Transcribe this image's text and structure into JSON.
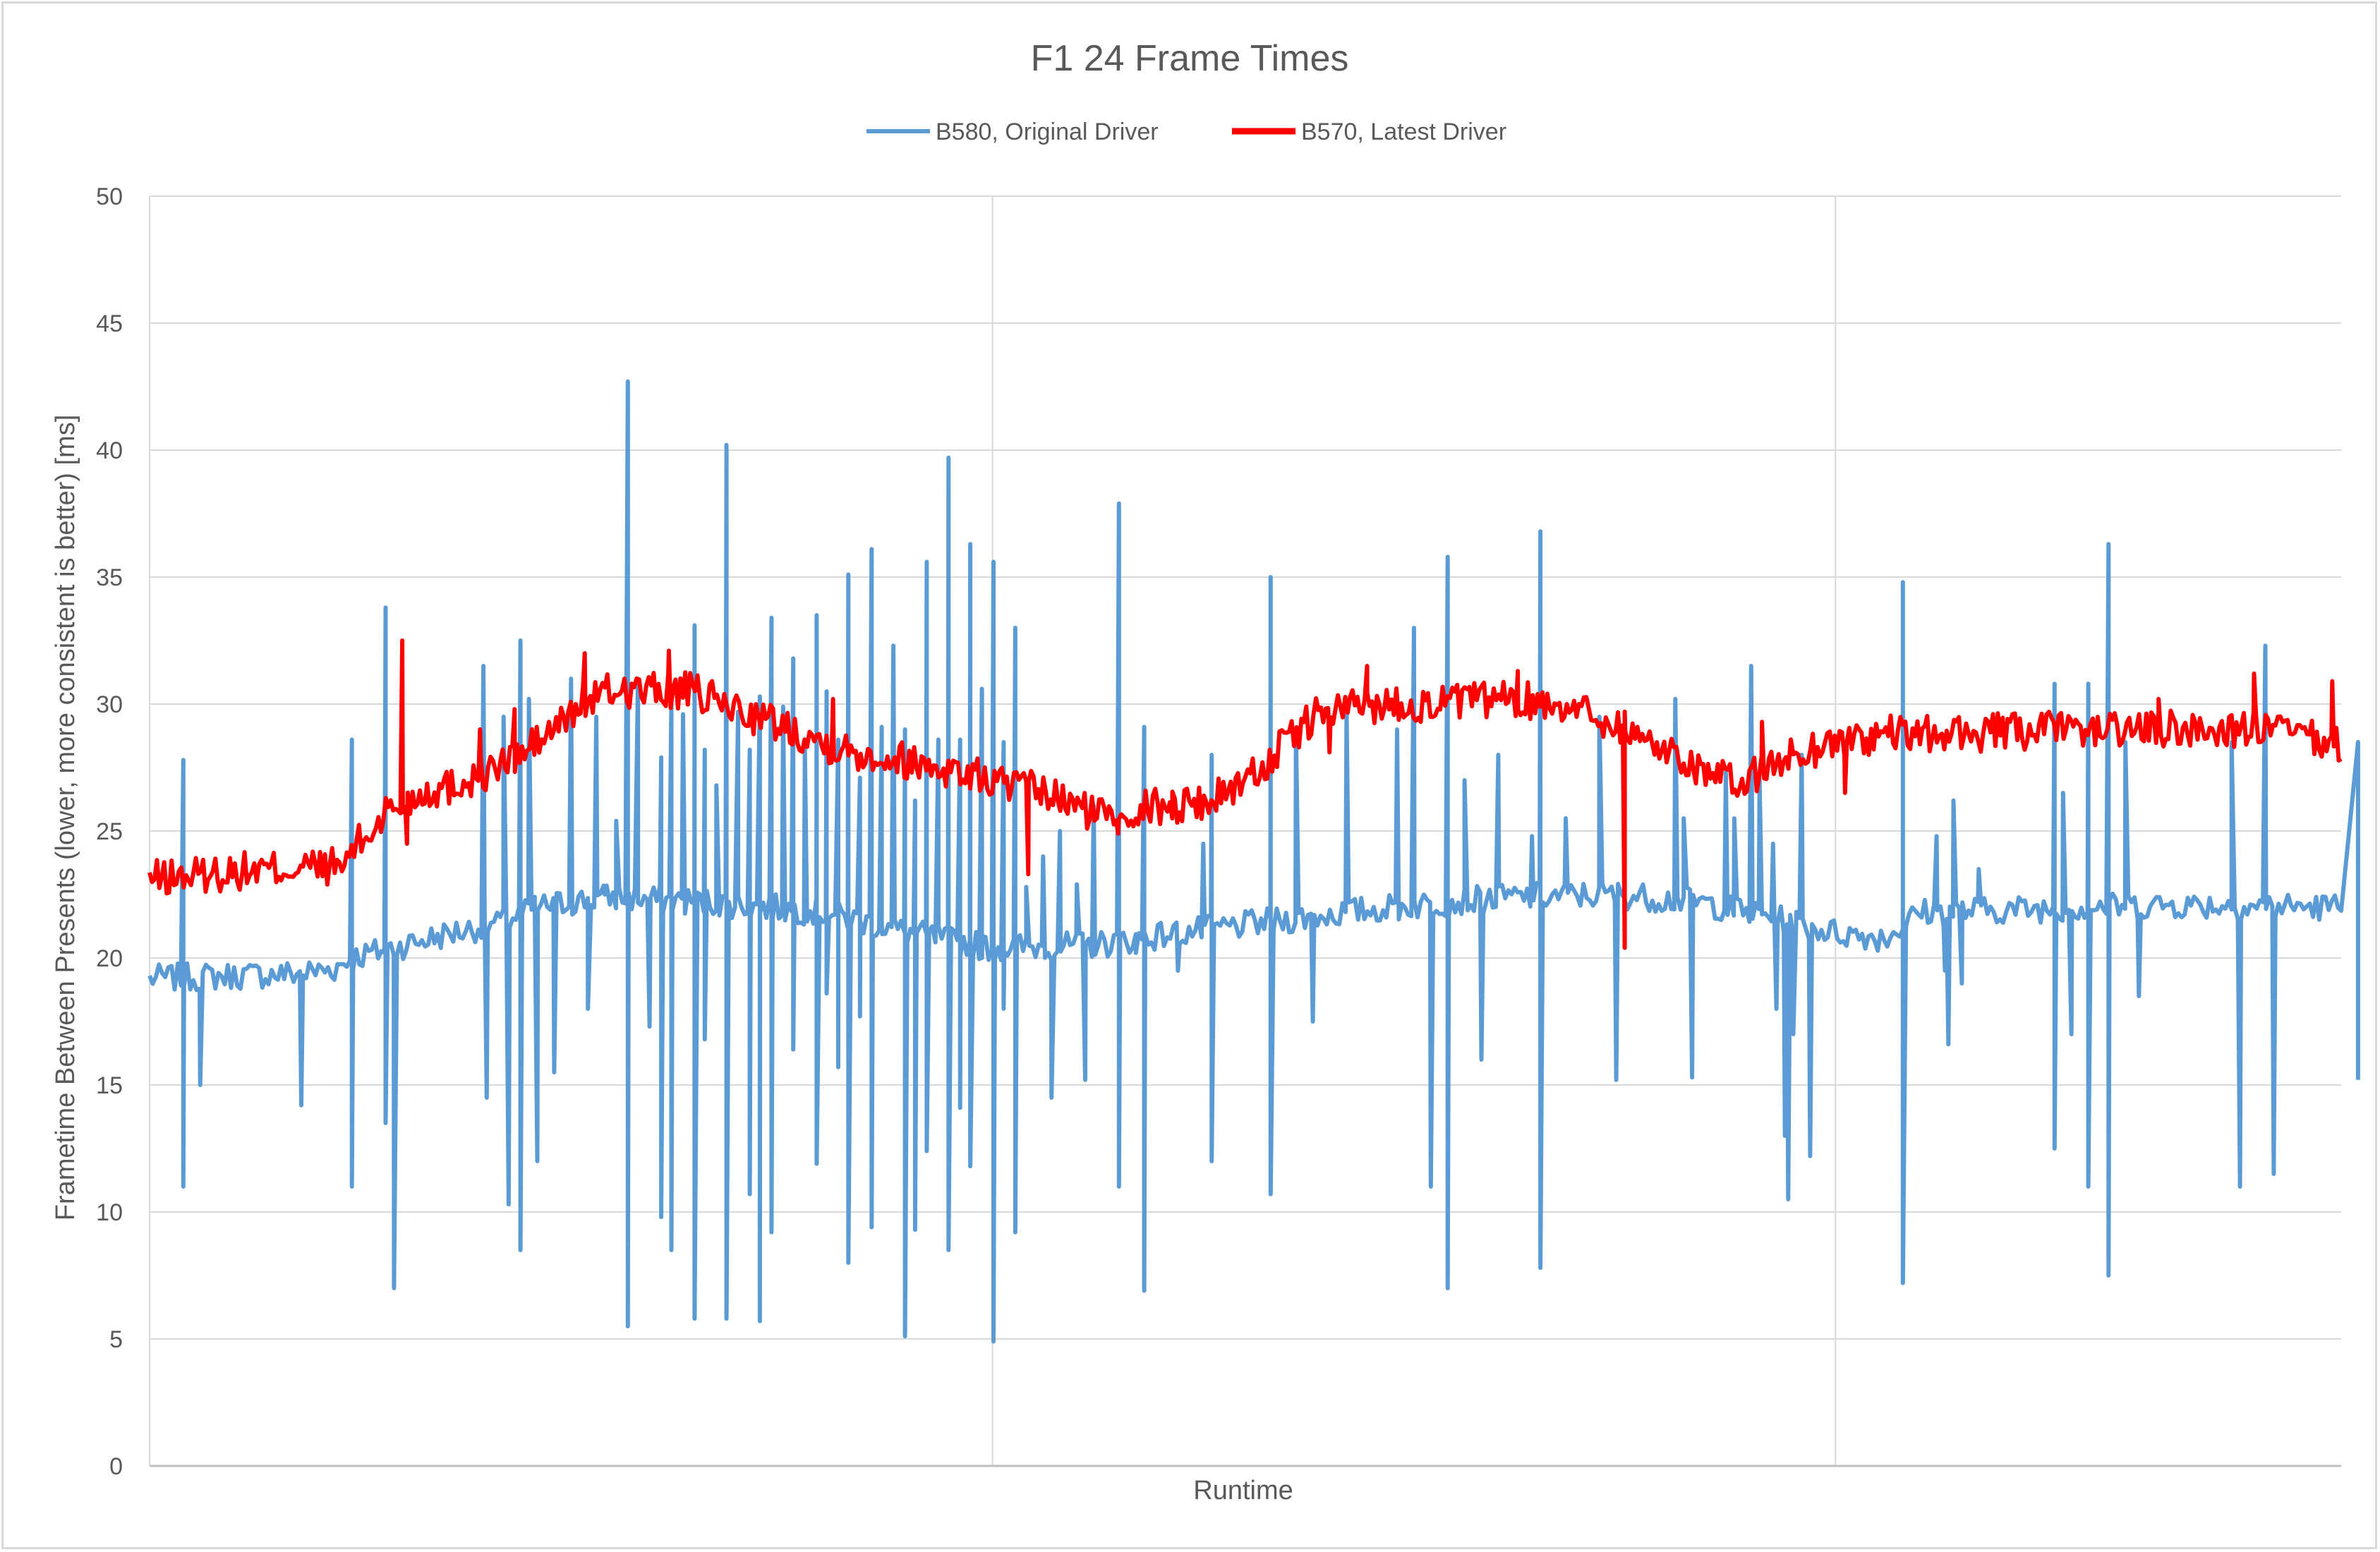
{
  "chart_data": {
    "type": "line",
    "title": "F1 24 Frame Times",
    "xlabel": "Runtime",
    "ylabel": "Frametime Between Presents (lower, more consistent is better) [ms]",
    "ylim": [
      0,
      50
    ],
    "yticks": [
      0,
      5,
      10,
      15,
      20,
      25,
      30,
      35,
      40,
      45,
      50
    ],
    "xlim": [
      0,
      1.3
    ],
    "x_gridlines": [
      0.5,
      1.0
    ],
    "grid": true,
    "legend_position": "top",
    "colors": {
      "B580": "#5b9bd5",
      "B570": "#ff0000",
      "grid": "#d9d9d9",
      "text": "#595959"
    },
    "series": [
      {
        "name": "B580, Original Driver",
        "color": "#5b9bd5",
        "profile": [
          [
            0.0,
            19.2
          ],
          [
            0.05,
            19.3
          ],
          [
            0.09,
            19.4
          ],
          [
            0.11,
            19.6
          ],
          [
            0.12,
            20.0
          ],
          [
            0.15,
            20.5
          ],
          [
            0.18,
            21.0
          ],
          [
            0.21,
            21.4
          ],
          [
            0.23,
            22.0
          ],
          [
            0.27,
            22.4
          ],
          [
            0.33,
            22.2
          ],
          [
            0.4,
            21.8
          ],
          [
            0.45,
            21.0
          ],
          [
            0.5,
            20.4
          ],
          [
            0.56,
            20.5
          ],
          [
            0.6,
            20.9
          ],
          [
            0.65,
            21.3
          ],
          [
            0.71,
            21.8
          ],
          [
            0.77,
            22.2
          ],
          [
            0.81,
            22.4
          ],
          [
            0.87,
            22.5
          ],
          [
            0.92,
            22.2
          ],
          [
            0.96,
            21.6
          ],
          [
            1.0,
            21.0
          ],
          [
            1.03,
            20.8
          ],
          [
            1.05,
            21.8
          ],
          [
            1.1,
            21.9
          ],
          [
            1.2,
            22.1
          ],
          [
            1.3,
            22.0
          ]
        ],
        "spikes": [
          [
            0.02,
            27.8
          ],
          [
            0.02,
            11.0
          ],
          [
            0.03,
            15.0
          ],
          [
            0.09,
            14.2
          ],
          [
            0.12,
            28.6
          ],
          [
            0.12,
            11.0
          ],
          [
            0.14,
            33.8
          ],
          [
            0.14,
            13.5
          ],
          [
            0.145,
            7.0
          ],
          [
            0.198,
            31.5
          ],
          [
            0.2,
            14.5
          ],
          [
            0.21,
            29.5
          ],
          [
            0.213,
            10.3
          ],
          [
            0.22,
            32.5
          ],
          [
            0.22,
            8.5
          ],
          [
            0.225,
            30.2
          ],
          [
            0.23,
            12.0
          ],
          [
            0.24,
            15.5
          ],
          [
            0.25,
            31.0
          ],
          [
            0.26,
            18.0
          ],
          [
            0.265,
            29.5
          ],
          [
            0.27,
            22.5
          ],
          [
            0.2768,
            25.4
          ],
          [
            0.2837,
            42.7
          ],
          [
            0.2837,
            5.5
          ],
          [
            0.2897,
            31.0
          ],
          [
            0.2966,
            17.3
          ],
          [
            0.3035,
            27.9
          ],
          [
            0.3035,
            9.8
          ],
          [
            0.3095,
            30.0
          ],
          [
            0.3095,
            8.5
          ],
          [
            0.3164,
            29.6
          ],
          [
            0.3233,
            33.1
          ],
          [
            0.3233,
            5.8
          ],
          [
            0.3293,
            28.2
          ],
          [
            0.3293,
            16.8
          ],
          [
            0.3362,
            26.8
          ],
          [
            0.3422,
            40.2
          ],
          [
            0.3422,
            5.8
          ],
          [
            0.3491,
            29.7
          ],
          [
            0.3491,
            23.8
          ],
          [
            0.356,
            28.2
          ],
          [
            0.356,
            10.7
          ],
          [
            0.362,
            30.3
          ],
          [
            0.362,
            5.7
          ],
          [
            0.3689,
            33.4
          ],
          [
            0.3689,
            9.2
          ],
          [
            0.3758,
            29.9
          ],
          [
            0.3818,
            31.8
          ],
          [
            0.3818,
            16.4
          ],
          [
            0.3887,
            28.2
          ],
          [
            0.3957,
            33.5
          ],
          [
            0.3957,
            11.9
          ],
          [
            0.4016,
            30.5
          ],
          [
            0.4016,
            18.6
          ],
          [
            0.4085,
            28.6
          ],
          [
            0.4085,
            15.7
          ],
          [
            0.4145,
            35.1
          ],
          [
            0.4145,
            8.0
          ],
          [
            0.4214,
            27.1
          ],
          [
            0.4214,
            17.7
          ],
          [
            0.4283,
            36.1
          ],
          [
            0.4283,
            9.4
          ],
          [
            0.4343,
            29.1
          ],
          [
            0.4343,
            21.4
          ],
          [
            0.4412,
            32.3
          ],
          [
            0.4481,
            29.0
          ],
          [
            0.4481,
            5.1
          ],
          [
            0.4541,
            26.2
          ],
          [
            0.4541,
            9.3
          ],
          [
            0.461,
            35.6
          ],
          [
            0.461,
            12.4
          ],
          [
            0.4679,
            28.6
          ],
          [
            0.4679,
            22.0
          ],
          [
            0.4739,
            39.7
          ],
          [
            0.4739,
            8.5
          ],
          [
            0.4808,
            28.6
          ],
          [
            0.4808,
            14.1
          ],
          [
            0.4868,
            36.3
          ],
          [
            0.4868,
            11.8
          ],
          [
            0.4937,
            30.6
          ],
          [
            0.4937,
            20.0
          ],
          [
            0.5006,
            35.6
          ],
          [
            0.5006,
            4.9
          ],
          [
            0.5066,
            28.5
          ],
          [
            0.5066,
            18.0
          ],
          [
            0.5135,
            33.0
          ],
          [
            0.5135,
            9.2
          ],
          [
            0.52,
            22.8
          ],
          [
            0.53,
            24.0
          ],
          [
            0.535,
            14.5
          ],
          [
            0.54,
            25.0
          ],
          [
            0.55,
            22.9
          ],
          [
            0.555,
            15.2
          ],
          [
            0.56,
            26.0
          ],
          [
            0.575,
            37.9
          ],
          [
            0.575,
            11.0
          ],
          [
            0.585,
            20.2
          ],
          [
            0.59,
            29.1
          ],
          [
            0.59,
            6.9
          ],
          [
            0.61,
            19.5
          ],
          [
            0.625,
            24.5
          ],
          [
            0.63,
            28.0
          ],
          [
            0.63,
            12.0
          ],
          [
            0.665,
            35.0
          ],
          [
            0.665,
            10.7
          ],
          [
            0.68,
            29.0
          ],
          [
            0.69,
            17.5
          ],
          [
            0.71,
            29.8
          ],
          [
            0.74,
            29.0
          ],
          [
            0.75,
            33.0
          ],
          [
            0.76,
            11.0
          ],
          [
            0.77,
            35.8
          ],
          [
            0.77,
            7.0
          ],
          [
            0.78,
            27.0
          ],
          [
            0.79,
            16.0
          ],
          [
            0.8,
            28.0
          ],
          [
            0.82,
            24.8
          ],
          [
            0.825,
            36.8
          ],
          [
            0.825,
            7.8
          ],
          [
            0.84,
            25.5
          ],
          [
            0.86,
            29.5
          ],
          [
            0.87,
            15.2
          ],
          [
            0.905,
            30.2
          ],
          [
            0.91,
            25.5
          ],
          [
            0.915,
            15.3
          ],
          [
            0.935,
            27.3
          ],
          [
            0.94,
            25.5
          ],
          [
            0.95,
            31.5
          ],
          [
            0.955,
            27.0
          ],
          [
            0.963,
            24.5
          ],
          [
            0.965,
            18.0
          ],
          [
            0.97,
            13.0
          ],
          [
            0.972,
            10.5
          ],
          [
            0.975,
            17.0
          ],
          [
            0.98,
            28.0
          ],
          [
            0.985,
            12.2
          ],
          [
            1.04,
            34.8
          ],
          [
            1.04,
            7.2
          ],
          [
            1.06,
            24.8
          ],
          [
            1.065,
            19.5
          ],
          [
            1.067,
            16.6
          ],
          [
            1.07,
            26.2
          ],
          [
            1.075,
            19.0
          ],
          [
            1.085,
            23.5
          ],
          [
            1.13,
            30.8
          ],
          [
            1.13,
            12.5
          ],
          [
            1.135,
            26.5
          ],
          [
            1.14,
            17.0
          ],
          [
            1.15,
            30.8
          ],
          [
            1.15,
            11.0
          ],
          [
            1.162,
            36.3
          ],
          [
            1.162,
            7.5
          ],
          [
            1.172,
            28.5
          ],
          [
            1.18,
            18.5
          ],
          [
            1.235,
            28.5
          ],
          [
            1.24,
            11.0
          ],
          [
            1.255,
            32.3
          ],
          [
            1.26,
            11.5
          ],
          [
            1.31,
            28.5
          ],
          [
            1.31,
            15.2
          ]
        ]
      },
      {
        "name": "B570, Latest Driver",
        "color": "#ff0000",
        "profile": [
          [
            0.0,
            23.1
          ],
          [
            0.05,
            23.4
          ],
          [
            0.1,
            23.6
          ],
          [
            0.115,
            23.6
          ],
          [
            0.12,
            24.3
          ],
          [
            0.13,
            24.8
          ],
          [
            0.14,
            25.8
          ],
          [
            0.15,
            26.0
          ],
          [
            0.16,
            26.5
          ],
          [
            0.18,
            26.8
          ],
          [
            0.2,
            27.3
          ],
          [
            0.22,
            28.0
          ],
          [
            0.24,
            29.0
          ],
          [
            0.26,
            30.2
          ],
          [
            0.28,
            30.6
          ],
          [
            0.3,
            30.5
          ],
          [
            0.32,
            30.5
          ],
          [
            0.34,
            30.0
          ],
          [
            0.36,
            29.5
          ],
          [
            0.39,
            28.8
          ],
          [
            0.41,
            28.2
          ],
          [
            0.44,
            27.9
          ],
          [
            0.47,
            27.5
          ],
          [
            0.5,
            27.0
          ],
          [
            0.53,
            26.5
          ],
          [
            0.56,
            25.7
          ],
          [
            0.58,
            25.8
          ],
          [
            0.6,
            26.0
          ],
          [
            0.63,
            26.2
          ],
          [
            0.66,
            27.5
          ],
          [
            0.69,
            29.5
          ],
          [
            0.72,
            30.0
          ],
          [
            0.76,
            30.0
          ],
          [
            0.8,
            30.2
          ],
          [
            0.84,
            30.0
          ],
          [
            0.86,
            29.5
          ],
          [
            0.88,
            28.8
          ],
          [
            0.9,
            28.2
          ],
          [
            0.92,
            27.5
          ],
          [
            0.94,
            26.8
          ],
          [
            0.96,
            27.5
          ],
          [
            0.975,
            28.0
          ],
          [
            1.0,
            28.5
          ],
          [
            1.03,
            28.8
          ],
          [
            1.06,
            28.8
          ],
          [
            1.1,
            28.9
          ],
          [
            1.14,
            29.0
          ],
          [
            1.18,
            29.0
          ],
          [
            1.22,
            29.0
          ],
          [
            1.26,
            29.0
          ],
          [
            1.3,
            28.3
          ]
        ],
        "spikes": [
          [
            0.1499,
            32.5
          ],
          [
            0.1527,
            24.5
          ],
          [
            0.875,
            20.4
          ],
          [
            0.875,
            29.7
          ],
          [
            0.7222,
            31.5
          ],
          [
            0.5212,
            23.3
          ],
          [
            0.308,
            32.1
          ],
          [
            0.196,
            29.0
          ],
          [
            1.0057,
            26.5
          ],
          [
            0.6066,
            25.5
          ],
          [
            0.9564,
            29.3
          ],
          [
            0.5745,
            24.9
          ],
          [
            0.6999,
            28.1
          ],
          [
            0.2581,
            32.0
          ],
          [
            0.2165,
            29.8
          ],
          [
            0.4054,
            30.2
          ],
          [
            0.8116,
            31.3
          ],
          [
            1.1917,
            30.2
          ],
          [
            1.2483,
            31.2
          ],
          [
            1.2947,
            30.9
          ]
        ]
      }
    ]
  }
}
